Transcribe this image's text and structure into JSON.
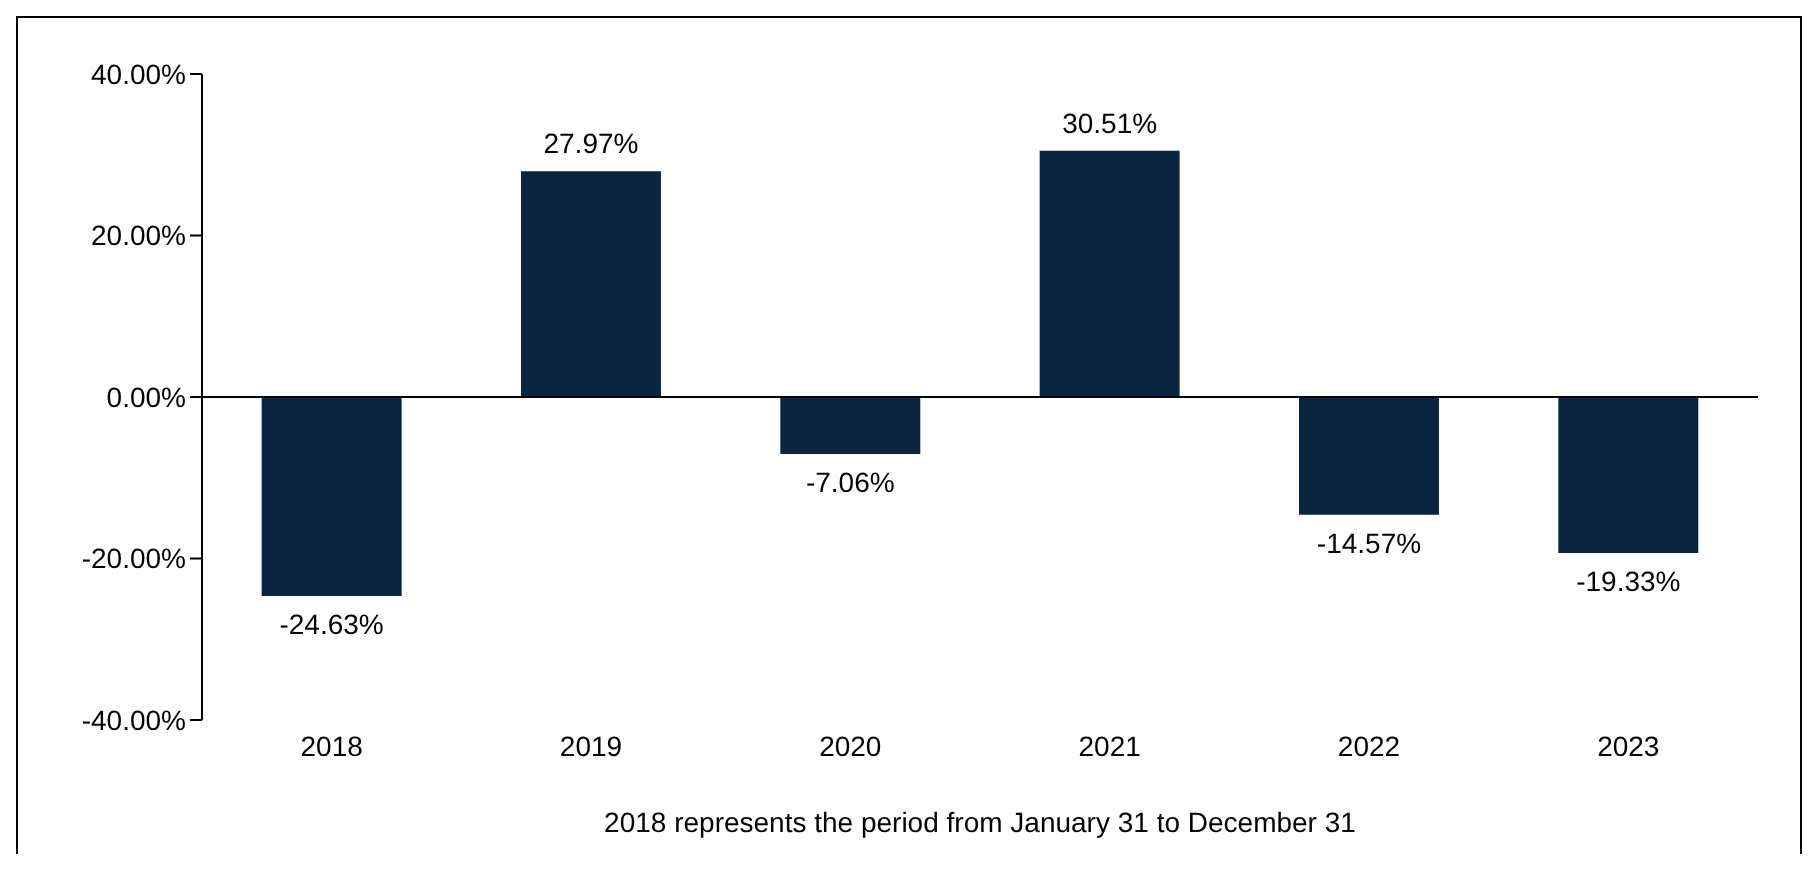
{
  "chart_data": {
    "type": "bar",
    "xlabel": "2018 represents the period from January 31 to December 31",
    "categories": [
      "2018",
      "2019",
      "2020",
      "2021",
      "2022",
      "2023"
    ],
    "values": [
      -24.63,
      27.97,
      -7.06,
      30.51,
      -14.57,
      -19.33
    ],
    "value_labels": [
      "-24.63%",
      "27.97%",
      "-7.06%",
      "30.51%",
      "-14.57%",
      "-19.33%"
    ],
    "color": "#0b2540",
    "ylim": [
      -40,
      40
    ],
    "yticks": [
      {
        "value": -40,
        "label": "-40.00%"
      },
      {
        "value": -20,
        "label": "-20.00%"
      },
      {
        "value": 0,
        "label": "0.00%"
      },
      {
        "value": 20,
        "label": "20.00%"
      },
      {
        "value": 40,
        "label": "40.00%"
      }
    ],
    "ref_lines": [
      {
        "axis": "y",
        "value": 0,
        "color": "#000000",
        "line_style": "solid"
      }
    ],
    "grid": false,
    "legend": false
  }
}
